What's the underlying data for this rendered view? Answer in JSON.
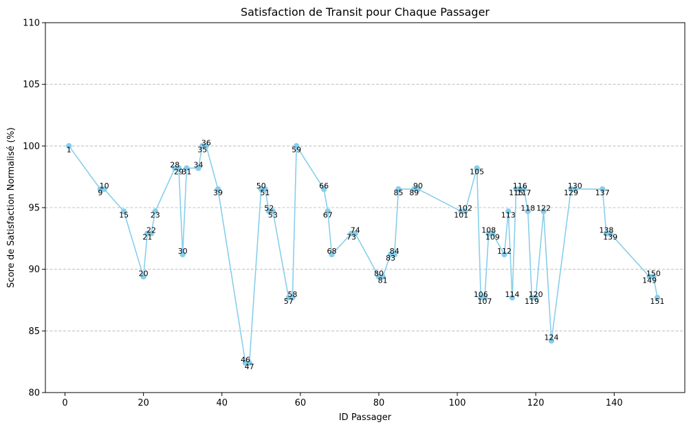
{
  "chart_data": {
    "type": "line",
    "title": "Satisfaction de Transit pour Chaque Passager",
    "xlabel": "ID Passager",
    "ylabel": "Score de Satisfaction Normalisé (%)",
    "xlim": [
      -5,
      158
    ],
    "ylim": [
      80,
      110
    ],
    "xticks": [
      0,
      20,
      40,
      60,
      80,
      100,
      120,
      140
    ],
    "yticks": [
      80,
      85,
      90,
      95,
      100,
      105,
      110
    ],
    "grid": "y-dashed",
    "colors": {
      "line": "#87ceeb",
      "marker": "#87ceeb",
      "grid": "#b0b0b0"
    },
    "series": [
      {
        "points": [
          {
            "x": 1,
            "y": 100.0,
            "label": "1",
            "pos": "below"
          },
          {
            "x": 9,
            "y": 96.5,
            "label": "9",
            "pos": "below"
          },
          {
            "x": 10,
            "y": 96.5,
            "label": "10",
            "pos": "above"
          },
          {
            "x": 15,
            "y": 94.7,
            "label": "15",
            "pos": "below"
          },
          {
            "x": 20,
            "y": 89.4,
            "label": "20",
            "pos": "above"
          },
          {
            "x": 21,
            "y": 92.9,
            "label": "21",
            "pos": "below"
          },
          {
            "x": 22,
            "y": 92.9,
            "label": "22",
            "pos": "above"
          },
          {
            "x": 23,
            "y": 94.7,
            "label": "23",
            "pos": "below"
          },
          {
            "x": 28,
            "y": 98.2,
            "label": "28",
            "pos": "above"
          },
          {
            "x": 29,
            "y": 98.2,
            "label": "29",
            "pos": "below"
          },
          {
            "x": 30,
            "y": 91.2,
            "label": "30",
            "pos": "above"
          },
          {
            "x": 31,
            "y": 98.2,
            "label": "31",
            "pos": "below"
          },
          {
            "x": 34,
            "y": 98.2,
            "label": "34",
            "pos": "above"
          },
          {
            "x": 35,
            "y": 100.0,
            "label": "35",
            "pos": "below"
          },
          {
            "x": 36,
            "y": 100.0,
            "label": "36",
            "pos": "above"
          },
          {
            "x": 39,
            "y": 96.5,
            "label": "39",
            "pos": "below"
          },
          {
            "x": 46,
            "y": 82.4,
            "label": "46",
            "pos": "above"
          },
          {
            "x": 47,
            "y": 82.4,
            "label": "47",
            "pos": "below"
          },
          {
            "x": 50,
            "y": 96.5,
            "label": "50",
            "pos": "above"
          },
          {
            "x": 51,
            "y": 96.5,
            "label": "51",
            "pos": "below"
          },
          {
            "x": 52,
            "y": 94.7,
            "label": "52",
            "pos": "above"
          },
          {
            "x": 53,
            "y": 94.7,
            "label": "53",
            "pos": "below"
          },
          {
            "x": 57,
            "y": 87.7,
            "label": "57",
            "pos": "below"
          },
          {
            "x": 58,
            "y": 87.7,
            "label": "58",
            "pos": "above"
          },
          {
            "x": 59,
            "y": 100.0,
            "label": "59",
            "pos": "below"
          },
          {
            "x": 66,
            "y": 96.5,
            "label": "66",
            "pos": "above"
          },
          {
            "x": 67,
            "y": 94.7,
            "label": "67",
            "pos": "below"
          },
          {
            "x": 68,
            "y": 91.2,
            "label": "68",
            "pos": "above"
          },
          {
            "x": 73,
            "y": 92.9,
            "label": "73",
            "pos": "below"
          },
          {
            "x": 74,
            "y": 92.9,
            "label": "74",
            "pos": "above"
          },
          {
            "x": 80,
            "y": 89.4,
            "label": "80",
            "pos": "above"
          },
          {
            "x": 81,
            "y": 89.4,
            "label": "81",
            "pos": "below"
          },
          {
            "x": 83,
            "y": 91.2,
            "label": "83",
            "pos": "below"
          },
          {
            "x": 84,
            "y": 91.2,
            "label": "84",
            "pos": "above"
          },
          {
            "x": 85,
            "y": 96.5,
            "label": "85",
            "pos": "below"
          },
          {
            "x": 89,
            "y": 96.5,
            "label": "89",
            "pos": "below"
          },
          {
            "x": 90,
            "y": 96.5,
            "label": "90",
            "pos": "above"
          },
          {
            "x": 101,
            "y": 94.7,
            "label": "101",
            "pos": "below"
          },
          {
            "x": 102,
            "y": 94.7,
            "label": "102",
            "pos": "above"
          },
          {
            "x": 105,
            "y": 98.2,
            "label": "105",
            "pos": "below"
          },
          {
            "x": 106,
            "y": 87.7,
            "label": "106",
            "pos": "above"
          },
          {
            "x": 107,
            "y": 87.7,
            "label": "107",
            "pos": "below"
          },
          {
            "x": 108,
            "y": 92.9,
            "label": "108",
            "pos": "above"
          },
          {
            "x": 109,
            "y": 92.9,
            "label": "109",
            "pos": "below"
          },
          {
            "x": 112,
            "y": 91.2,
            "label": "112",
            "pos": "above"
          },
          {
            "x": 113,
            "y": 94.7,
            "label": "113",
            "pos": "below"
          },
          {
            "x": 114,
            "y": 87.7,
            "label": "114",
            "pos": "above"
          },
          {
            "x": 115,
            "y": 96.5,
            "label": "115",
            "pos": "below"
          },
          {
            "x": 116,
            "y": 96.5,
            "label": "116",
            "pos": "above"
          },
          {
            "x": 117,
            "y": 96.5,
            "label": "117",
            "pos": "below"
          },
          {
            "x": 118,
            "y": 94.7,
            "label": "118",
            "pos": "above"
          },
          {
            "x": 119,
            "y": 87.7,
            "label": "119",
            "pos": "below"
          },
          {
            "x": 120,
            "y": 87.7,
            "label": "120",
            "pos": "above"
          },
          {
            "x": 122,
            "y": 94.7,
            "label": "122",
            "pos": "above"
          },
          {
            "x": 124,
            "y": 84.2,
            "label": "124",
            "pos": "above"
          },
          {
            "x": 129,
            "y": 96.5,
            "label": "129",
            "pos": "below"
          },
          {
            "x": 130,
            "y": 96.5,
            "label": "130",
            "pos": "above"
          },
          {
            "x": 137,
            "y": 96.5,
            "label": "137",
            "pos": "below"
          },
          {
            "x": 138,
            "y": 92.9,
            "label": "138",
            "pos": "above"
          },
          {
            "x": 139,
            "y": 92.9,
            "label": "139",
            "pos": "below"
          },
          {
            "x": 149,
            "y": 89.4,
            "label": "149",
            "pos": "below"
          },
          {
            "x": 150,
            "y": 89.4,
            "label": "150",
            "pos": "above"
          },
          {
            "x": 151,
            "y": 87.7,
            "label": "151",
            "pos": "below"
          }
        ]
      }
    ]
  }
}
